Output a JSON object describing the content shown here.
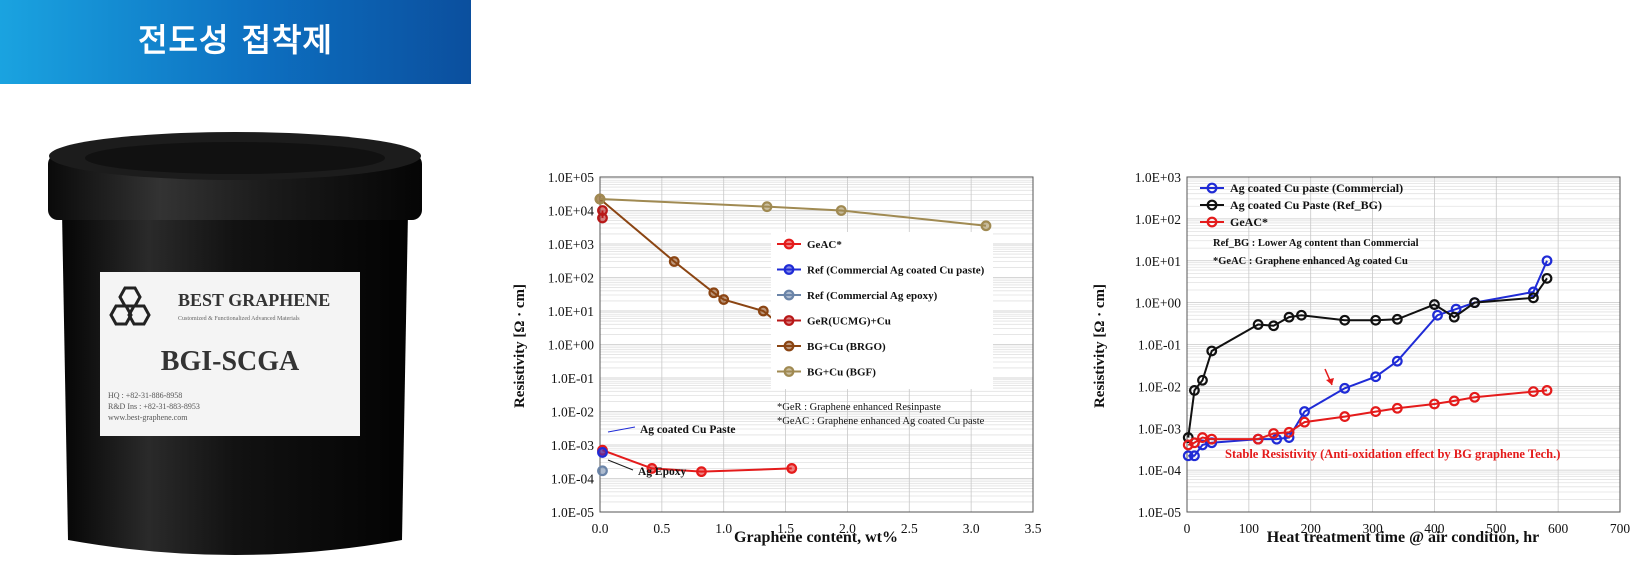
{
  "banner": {
    "title": "전도성 접착제"
  },
  "product": {
    "brand": "BEST GRAPHENE",
    "tagline": "Customized & Functionalized Advanced Materials",
    "name": "BGI-SCGA",
    "contact": [
      "HQ : +82-31-886-8958",
      "R&D Ins : +82-31-883-8953",
      "www.best-graphene.com"
    ]
  },
  "colors": {
    "red": "#e41b1b",
    "blue": "#1f2bd6",
    "grey": "#6a84a8",
    "darkred": "#b81818",
    "brown": "#8b4513",
    "olive": "#a08a52",
    "black": "#111111",
    "banner": "#0d6fc0"
  },
  "chart_data": [
    {
      "type": "line",
      "xlabel": "Graphene content, wt%",
      "ylabel": "Resistivity  [Ω · cm]",
      "xlim": [
        0,
        3.5
      ],
      "ylim": [
        1e-05,
        100000.0
      ],
      "yscale": "log",
      "xticks": [
        "0.0",
        "0.5",
        "1.0",
        "1.5",
        "2.0",
        "2.5",
        "3.0",
        "3.5"
      ],
      "yticks": [
        "1.0E-05",
        "1.0E-04",
        "1.0E-03",
        "1.0E-02",
        "1.0E-01",
        "1.0E+00",
        "1.0E+01",
        "1.0E+02",
        "1.0E+03",
        "1.0E+04",
        "1.0E+05"
      ],
      "grid": true,
      "legend_position": "center-right",
      "series": [
        {
          "name": "GeAC*",
          "color": "#e41b1b",
          "x": [
            0.02,
            0.42,
            0.82,
            1.55
          ],
          "y": [
            0.0007,
            0.0002,
            0.00016,
            0.0002
          ]
        },
        {
          "name": "Ref (Commercial Ag coated Cu paste)",
          "color": "#1f2bd6",
          "x": [
            0.02
          ],
          "y": [
            0.0006
          ]
        },
        {
          "name": "Ref (Commercial Ag epoxy)",
          "color": "#6a84a8",
          "x": [
            0.02
          ],
          "y": [
            0.00017
          ]
        },
        {
          "name": "GeR(UCMG)+Cu",
          "color": "#b81818",
          "x": [
            0.02,
            0.02
          ],
          "y": [
            10000.0,
            6000.0
          ]
        },
        {
          "name": "BG+Cu (BRGO)",
          "color": "#8b4513",
          "x": [
            0.0,
            0.6,
            0.92,
            1.0,
            1.32,
            1.45
          ],
          "y": [
            22000.0,
            300,
            35,
            22,
            10,
            4
          ]
        },
        {
          "name": "BG+Cu (BGF)",
          "color": "#a08a52",
          "x": [
            0.0,
            1.35,
            1.95,
            3.12
          ],
          "y": [
            22000.0,
            13000.0,
            10000.0,
            3500.0
          ]
        }
      ],
      "notes": [
        "*GeR : Graphene enhanced Resinpaste",
        "*GeAC : Graphene enhanced Ag coated Cu paste"
      ],
      "annotations": [
        "Ag coated Cu Paste",
        "Ag Epoxy"
      ]
    },
    {
      "type": "line",
      "xlabel": "Heat treatment time @ air condition, hr",
      "ylabel": "Resistivity  [Ω · cm]",
      "xlim": [
        0,
        700
      ],
      "ylim": [
        1e-05,
        1000.0
      ],
      "yscale": "log",
      "xticks": [
        "0",
        "100",
        "200",
        "300",
        "400",
        "500",
        "600",
        "700"
      ],
      "yticks": [
        "1.0E-05",
        "1.0E-04",
        "1.0E-03",
        "1.0E-02",
        "1.0E-01",
        "1.0E+00",
        "1.0E+01",
        "1.0E+02",
        "1.0E+03"
      ],
      "grid": true,
      "legend_position": "top-left",
      "series": [
        {
          "name": "Ag coated Cu paste (Commercial)",
          "color": "#1f2bd6",
          "x": [
            2,
            12,
            25,
            40,
            115,
            145,
            165,
            190,
            255,
            305,
            340,
            405,
            435,
            465,
            560,
            582
          ],
          "y": [
            0.00022,
            0.00022,
            0.0004,
            0.00045,
            0.00055,
            0.00055,
            0.0006,
            0.0025,
            0.009,
            0.017,
            0.04,
            0.5,
            0.7,
            1.0,
            1.8,
            10
          ]
        },
        {
          "name": "Ag coated Cu Paste (Ref_BG)",
          "color": "#111111",
          "x": [
            2,
            12,
            25,
            40,
            115,
            140,
            165,
            185,
            255,
            305,
            340,
            400,
            432,
            465,
            560,
            582
          ],
          "y": [
            0.0006,
            0.008,
            0.014,
            0.07,
            0.3,
            0.28,
            0.45,
            0.5,
            0.38,
            0.38,
            0.4,
            0.9,
            0.45,
            1.0,
            1.3,
            3.8
          ]
        },
        {
          "name": "GeAC*",
          "color": "#e41b1b",
          "x": [
            2,
            12,
            25,
            40,
            115,
            140,
            165,
            190,
            255,
            305,
            340,
            400,
            432,
            465,
            560,
            582
          ],
          "y": [
            0.0004,
            0.00045,
            0.0006,
            0.00055,
            0.00055,
            0.00075,
            0.0008,
            0.0014,
            0.0019,
            0.0025,
            0.003,
            0.0038,
            0.0045,
            0.0055,
            0.0075,
            0.008
          ]
        }
      ],
      "notes": [
        "Ref_BG : Lower Ag content than Commercial",
        "*GeAC : Graphene enhanced Ag coated Cu"
      ],
      "annotations": [
        "Stable Resistivity (Anti-oxidation effect by BG graphene Tech.)"
      ]
    }
  ]
}
